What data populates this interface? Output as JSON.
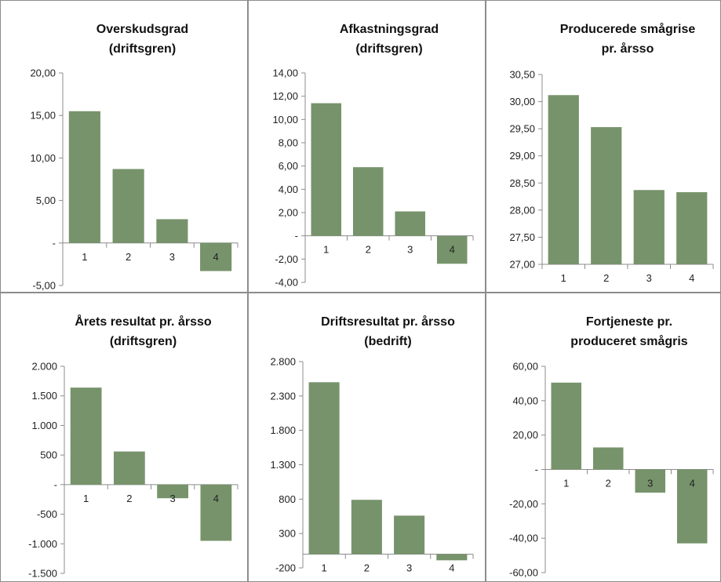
{
  "chart_data": [
    {
      "type": "bar",
      "title_lines": [
        "Overskudsgrad",
        "(driftsgren)"
      ],
      "categories": [
        "1",
        "2",
        "3",
        "4"
      ],
      "values": [
        15.5,
        8.7,
        2.8,
        -3.3
      ],
      "ylim": [
        -5,
        20
      ],
      "yticks": [
        20,
        15,
        10,
        5,
        0,
        -5
      ],
      "ytick_labels": [
        "20,00",
        "15,00",
        "10,00",
        "5,00",
        "-",
        "-5,00"
      ],
      "grid": false,
      "color": "#77936b"
    },
    {
      "type": "bar",
      "title_lines": [
        "Afkastningsgrad",
        "(driftsgren)"
      ],
      "categories": [
        "1",
        "2",
        "3",
        "4"
      ],
      "values": [
        11.4,
        5.9,
        2.1,
        -2.4
      ],
      "ylim": [
        -4,
        14
      ],
      "yticks": [
        14,
        12,
        10,
        8,
        6,
        4,
        2,
        0,
        -2,
        -4
      ],
      "ytick_labels": [
        "14,00",
        "12,00",
        "10,00",
        "8,00",
        "6,00",
        "4,00",
        "2,00",
        "-",
        "-2,00",
        "-4,00"
      ],
      "grid": false,
      "color": "#77936b"
    },
    {
      "type": "bar",
      "title_lines": [
        "Producerede smågrise",
        "pr. årsso"
      ],
      "categories": [
        "1",
        "2",
        "3",
        "4"
      ],
      "values": [
        30.12,
        29.53,
        28.37,
        28.33
      ],
      "ylim": [
        27,
        30.5
      ],
      "yticks": [
        30.5,
        30,
        29.5,
        29,
        28.5,
        28,
        27.5,
        27
      ],
      "ytick_labels": [
        "30,50",
        "30,00",
        "29,50",
        "29,00",
        "28,50",
        "28,00",
        "27,50",
        "27,00"
      ],
      "grid": false,
      "color": "#77936b"
    },
    {
      "type": "bar",
      "title_lines": [
        "Årets resultat pr. årsso",
        "(driftsgren)"
      ],
      "categories": [
        "1",
        "2",
        "3",
        "4"
      ],
      "values": [
        1640,
        560,
        -230,
        -950
      ],
      "ylim": [
        -1500,
        2000
      ],
      "yticks": [
        2000,
        1500,
        1000,
        500,
        0,
        -500,
        -1000,
        -1500
      ],
      "ytick_labels": [
        "2.000",
        "1.500",
        "1.000",
        "500",
        "-",
        "-500",
        "-1.000",
        "-1.500"
      ],
      "grid": false,
      "color": "#77936b"
    },
    {
      "type": "bar",
      "title_lines": [
        "Driftsresultat pr. årsso",
        "(bedrift)"
      ],
      "categories": [
        "1",
        "2",
        "3",
        "4"
      ],
      "values": [
        2500,
        790,
        560,
        -90
      ],
      "ylim": [
        -200,
        2800
      ],
      "yticks": [
        2800,
        2300,
        1800,
        1300,
        800,
        300,
        -200
      ],
      "ytick_labels": [
        "2.800",
        "2.300",
        "1.800",
        "1.300",
        "800",
        "300",
        "-200"
      ],
      "grid": false,
      "color": "#77936b"
    },
    {
      "type": "bar",
      "title_lines": [
        "Fortjeneste pr.",
        "produceret smågris"
      ],
      "categories": [
        "1",
        "2",
        "3",
        "4"
      ],
      "values": [
        50.5,
        12.8,
        -13.5,
        -43
      ],
      "ylim": [
        -60,
        60
      ],
      "yticks": [
        60,
        40,
        20,
        0,
        -20,
        -40,
        -60
      ],
      "ytick_labels": [
        "60,00",
        "40,00",
        "20,00",
        "-",
        "-20,00",
        "-40,00",
        "-60,00"
      ],
      "grid": false,
      "color": "#77936b"
    }
  ]
}
